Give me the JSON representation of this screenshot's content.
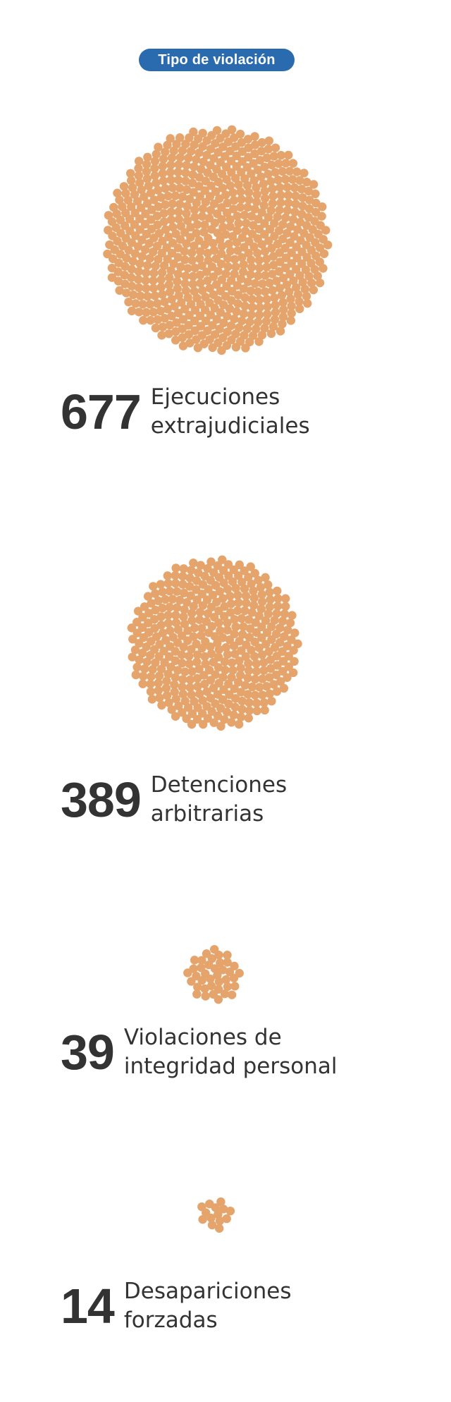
{
  "header": {
    "filter_label": "Tipo de violación"
  },
  "colors": {
    "dot": "#e5a46b",
    "pill": "#2a6bb0",
    "text": "#333333"
  },
  "chart_data": {
    "type": "bubble-count",
    "categories": [
      {
        "value": 677,
        "label_lines": [
          "Ejecuciones",
          "extrajudiciales"
        ]
      },
      {
        "value": 389,
        "label_lines": [
          "Detenciones",
          "arbitrarias"
        ]
      },
      {
        "value": 39,
        "label_lines": [
          "Violaciones de",
          "integridad personal"
        ]
      },
      {
        "value": 14,
        "label_lines": [
          "Desapariciones",
          "forzadas"
        ]
      }
    ]
  }
}
